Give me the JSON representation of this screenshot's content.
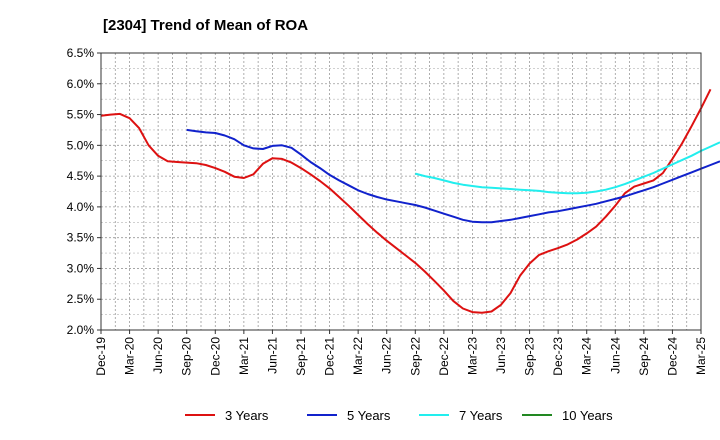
{
  "chart_data": {
    "type": "line",
    "title": "[2304]  Trend of Mean of ROA",
    "xlabel": "",
    "ylabel": "",
    "ylim": [
      2.0,
      6.5
    ],
    "yticks": [
      2.0,
      2.5,
      3.0,
      3.5,
      4.0,
      4.5,
      5.0,
      5.5,
      6.0,
      6.5
    ],
    "ytick_labels": [
      "2.0%",
      "2.5%",
      "3.0%",
      "3.5%",
      "4.0%",
      "4.5%",
      "5.0%",
      "5.5%",
      "6.0%",
      "6.5%"
    ],
    "xticks": [
      "Dec-19",
      "Mar-20",
      "Jun-20",
      "Sep-20",
      "Dec-20",
      "Mar-21",
      "Jun-21",
      "Sep-21",
      "Dec-21",
      "Mar-22",
      "Jun-22",
      "Sep-22",
      "Dec-22",
      "Mar-23",
      "Jun-23",
      "Sep-23",
      "Dec-23",
      "Mar-24",
      "Jun-24",
      "Sep-24",
      "Dec-24",
      "Mar-25"
    ],
    "grid": true,
    "legend_position": "bottom",
    "series": [
      {
        "name": "3 Years",
        "color": "#dd1111",
        "start": "Dec-19",
        "values": [
          5.48,
          5.5,
          5.51,
          5.44,
          5.28,
          5.0,
          4.83,
          4.74,
          4.73,
          4.72,
          4.71,
          4.68,
          4.63,
          4.57,
          4.49,
          4.47,
          4.53,
          4.7,
          4.79,
          4.78,
          4.72,
          4.63,
          4.53,
          4.42,
          4.3,
          4.16,
          4.02,
          3.87,
          3.72,
          3.58,
          3.45,
          3.33,
          3.21,
          3.09,
          2.95,
          2.8,
          2.64,
          2.47,
          2.35,
          2.29,
          2.28,
          2.3,
          2.41,
          2.6,
          2.88,
          3.08,
          3.22,
          3.28,
          3.33,
          3.39,
          3.47,
          3.57,
          3.68,
          3.84,
          4.02,
          4.22,
          4.33,
          4.38,
          4.43,
          4.55,
          4.78,
          5.03,
          5.31,
          5.6,
          5.91
        ]
      },
      {
        "name": "5 Years",
        "color": "#1122cc",
        "start": "Sep-20",
        "values": [
          5.25,
          5.23,
          5.21,
          5.2,
          5.16,
          5.1,
          5.0,
          4.95,
          4.94,
          4.99,
          5.0,
          4.96,
          4.85,
          4.73,
          4.63,
          4.52,
          4.43,
          4.35,
          4.27,
          4.21,
          4.16,
          4.12,
          4.09,
          4.06,
          4.03,
          3.99,
          3.94,
          3.89,
          3.84,
          3.79,
          3.76,
          3.75,
          3.75,
          3.77,
          3.79,
          3.82,
          3.85,
          3.88,
          3.91,
          3.93,
          3.96,
          3.99,
          4.02,
          4.05,
          4.09,
          4.13,
          4.17,
          4.22,
          4.27,
          4.32,
          4.38,
          4.44,
          4.5,
          4.56,
          4.62,
          4.68,
          4.74
        ]
      },
      {
        "name": "7 Years",
        "color": "#22eeee",
        "start": "Sep-22",
        "values": [
          4.54,
          4.5,
          4.47,
          4.43,
          4.39,
          4.36,
          4.34,
          4.32,
          4.31,
          4.3,
          4.29,
          4.28,
          4.27,
          4.26,
          4.24,
          4.23,
          4.22,
          4.22,
          4.23,
          4.25,
          4.28,
          4.32,
          4.37,
          4.43,
          4.49,
          4.55,
          4.62,
          4.69,
          4.76,
          4.83,
          4.91,
          4.98,
          5.05
        ]
      },
      {
        "name": "10 Years",
        "color": "#228822",
        "start": "Dec-19",
        "values": []
      }
    ]
  }
}
